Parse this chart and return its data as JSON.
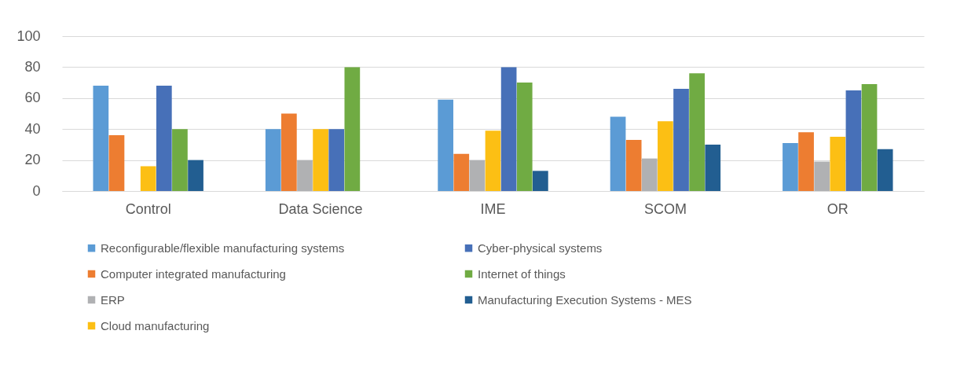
{
  "chart_data": {
    "type": "bar",
    "categories": [
      "Control",
      "Data  Science",
      "IME",
      "SCOM",
      "OR"
    ],
    "series": [
      {
        "name": "Reconfigurable/flexible manufacturing systems",
        "color": "#5b9bd5",
        "values": [
          68,
          40,
          59,
          48,
          31
        ]
      },
      {
        "name": "Computer integrated manufacturing",
        "color": "#ed7d31",
        "values": [
          36,
          50,
          24,
          33,
          38
        ]
      },
      {
        "name": "ERP",
        "color": "#b0b1b3",
        "values": [
          null,
          20,
          20,
          21,
          19
        ]
      },
      {
        "name": "Cloud manufacturing",
        "color": "#fcbf14",
        "values": [
          16,
          40,
          39,
          45,
          35
        ]
      },
      {
        "name": "Cyber-physical systems",
        "color": "#4770b8",
        "values": [
          68,
          40,
          80,
          66,
          65
        ]
      },
      {
        "name": "Internet of things",
        "color": "#70ab43",
        "values": [
          40,
          80,
          70,
          76,
          69
        ]
      },
      {
        "name": "Manufacturing Execution Systems - MES",
        "color": "#225e91",
        "values": [
          20,
          null,
          13,
          30,
          27
        ]
      }
    ],
    "ylim": [
      0,
      100
    ],
    "yticks": [
      0,
      20,
      40,
      60,
      80,
      100
    ],
    "grid": "y",
    "legend": "bottom"
  }
}
